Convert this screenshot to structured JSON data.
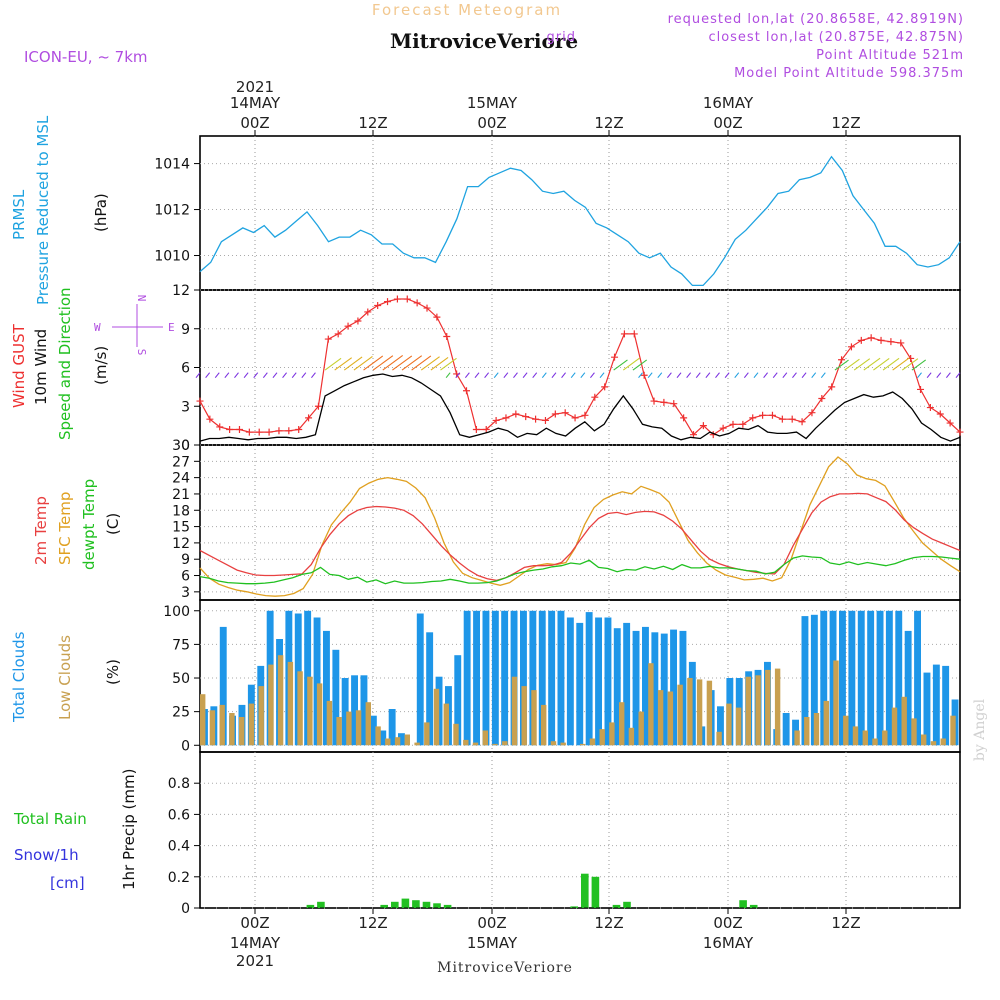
{
  "header": {
    "subtitle": "Forecast Meteogram",
    "title": "MitroviceVeriore",
    "model": "ICON-EU, ~ 7km",
    "requested": "requested lon,lat (20.8658E, 42.8919N)",
    "closest": "closest lon,lat (20.875E, 42.875N)",
    "closest_prefix": "grid",
    "point_alt": "Point Altitude 521m",
    "model_alt": "Model Point Altitude 598.375m"
  },
  "footer": {
    "station": "MitroviceVeriore",
    "watermark": "by Angel"
  },
  "time_axis": {
    "top_labels": [
      "00Z",
      "12Z",
      "00Z",
      "12Z",
      "00Z",
      "12Z"
    ],
    "top_dates": [
      "14MAY",
      "15MAY",
      "16MAY"
    ],
    "year": "2021",
    "bottom_labels": [
      "00Z",
      "12Z",
      "00Z",
      "12Z",
      "00Z",
      "12Z"
    ],
    "bottom_dates": [
      "14MAY",
      "15MAY",
      "16MAY"
    ]
  },
  "panel_labels": {
    "pressure": [
      "PRMSL",
      "Pressure Reduced to MSL",
      "(hPa)"
    ],
    "wind": [
      "Wind GUST",
      "10m Wind",
      "Speed and Direction",
      "(m/s)"
    ],
    "compass": {
      "n": "N",
      "s": "S",
      "w": "W",
      "e": "E"
    },
    "temp": [
      "2m Temp",
      "SFC Temp",
      "dewpt Temp",
      "(C)"
    ],
    "clouds": [
      "Total Clouds",
      "Low Clouds",
      "(%)"
    ],
    "precip": [
      "Total  Rain",
      "Snow/1h",
      "[cm]",
      "1hr Precip (mm)"
    ]
  },
  "colors": {
    "pressure": "#1fa3e0",
    "gust": "#ee3030",
    "wind": "#000000",
    "t2m": "#e84040",
    "sfc": "#e0a020",
    "dew": "#20c020",
    "total_clouds": "#1e96e8",
    "low_clouds": "#c8a050",
    "rain": "#22c022",
    "label_purple": "#b04de0",
    "label_blue": "#3333dd"
  },
  "chart_data": [
    {
      "type": "line",
      "name": "pressure",
      "ylabel": "(hPa)",
      "ylim": [
        1008.5,
        1015.2
      ],
      "yticks": [
        1010,
        1012,
        1014
      ],
      "x_hours": [
        0,
        1,
        2,
        3,
        4,
        5,
        6,
        7,
        8,
        9,
        10,
        11,
        12,
        13,
        14,
        15,
        16,
        17,
        18,
        19,
        20,
        21,
        22,
        23,
        24,
        25,
        26,
        27,
        28,
        29,
        30,
        31,
        32,
        33,
        34,
        35,
        36,
        37,
        38,
        39,
        40,
        41,
        42,
        43,
        44,
        45,
        46,
        47,
        48,
        49,
        50,
        51,
        52,
        53,
        54,
        55,
        56,
        57,
        58,
        59,
        60,
        61,
        62,
        63,
        64,
        65,
        66,
        67,
        68,
        69,
        70,
        71
      ],
      "series": [
        {
          "values": [
            1009.3,
            1009.7,
            1010.6,
            1010.9,
            1011.2,
            1011.0,
            1011.3,
            1010.8,
            1011.1,
            1011.5,
            1011.9,
            1011.3,
            1010.6,
            1010.8,
            1010.8,
            1011.1,
            1010.9,
            1010.5,
            1010.5,
            1010.1,
            1009.9,
            1009.9,
            1009.7,
            1010.6,
            1011.6,
            1013.0,
            1013.0,
            1013.4,
            1013.6,
            1013.8,
            1013.7,
            1013.3,
            1012.8,
            1012.7,
            1012.8,
            1012.4,
            1012.1,
            1011.4,
            1011.2,
            1010.9,
            1010.6,
            1010.1,
            1009.9,
            1010.1,
            1009.5,
            1009.2,
            1008.7,
            1008.7,
            1009.2,
            1009.9,
            1010.7,
            1011.1,
            1011.6,
            1012.1,
            1012.7,
            1012.8,
            1013.3,
            1013.4,
            1013.6,
            1014.3,
            1013.7,
            1012.6,
            1012.0,
            1011.4,
            1010.4,
            1010.4,
            1010.1,
            1009.6,
            1009.5,
            1009.6,
            1009.9,
            1010.6
          ]
        }
      ]
    },
    {
      "type": "line",
      "name": "wind",
      "ylabel": "(m/s)",
      "ylim": [
        0,
        12
      ],
      "yticks": [
        0,
        3,
        6,
        9,
        12
      ],
      "series": [
        {
          "name": "Wind GUST",
          "values": [
            3.4,
            2.0,
            1.4,
            1.2,
            1.2,
            1.0,
            1.0,
            1.0,
            1.1,
            1.1,
            1.2,
            2.1,
            3.0,
            8.2,
            8.6,
            9.2,
            9.6,
            10.3,
            10.8,
            11.1,
            11.3,
            11.3,
            11.0,
            10.6,
            9.9,
            8.4,
            5.5,
            4.2,
            1.2,
            1.2,
            1.9,
            2.1,
            2.4,
            2.2,
            2.0,
            1.9,
            2.4,
            2.5,
            2.1,
            2.3,
            3.7,
            4.5,
            6.8,
            8.6,
            8.6,
            5.4,
            3.4,
            3.3,
            3.2,
            2.1,
            0.8,
            1.5,
            0.8,
            1.3,
            1.6,
            1.6,
            2.1,
            2.3,
            2.3,
            2.0,
            2.0,
            1.8,
            2.5,
            3.6,
            4.5,
            6.6,
            7.6,
            8.1,
            8.3,
            8.1,
            8.0,
            7.9,
            6.7,
            4.3,
            2.9,
            2.4,
            1.7,
            1.0
          ]
        },
        {
          "name": "10m Wind",
          "values": [
            0.3,
            0.5,
            0.5,
            0.6,
            0.5,
            0.4,
            0.5,
            0.5,
            0.6,
            0.6,
            0.5,
            0.6,
            0.8,
            3.8,
            4.2,
            4.6,
            4.9,
            5.2,
            5.4,
            5.5,
            5.3,
            5.4,
            5.2,
            4.8,
            4.3,
            3.8,
            2.5,
            0.8,
            0.6,
            0.8,
            1.0,
            1.3,
            1.1,
            0.6,
            0.9,
            0.8,
            1.3,
            0.9,
            0.7,
            1.3,
            1.8,
            1.1,
            1.6,
            2.8,
            3.8,
            2.8,
            1.6,
            1.4,
            1.3,
            0.7,
            0.4,
            0.6,
            0.5,
            1.0,
            0.7,
            0.9,
            1.3,
            1.2,
            1.5,
            1.0,
            0.9,
            0.9,
            1.0,
            0.5,
            1.3,
            2.0,
            2.7,
            3.3,
            3.6,
            3.9,
            3.7,
            3.8,
            4.1,
            3.6,
            2.8,
            1.7,
            1.2,
            0.6,
            0.3,
            0.6
          ]
        }
      ]
    },
    {
      "type": "line",
      "name": "temperature",
      "ylabel": "(C)",
      "ylim": [
        1.5,
        30
      ],
      "yticks": [
        3,
        6,
        9,
        12,
        15,
        18,
        21,
        24,
        27,
        30
      ],
      "series": [
        {
          "name": "2m Temp",
          "values": [
            10.6,
            9.7,
            8.8,
            7.9,
            7.0,
            6.5,
            6.1,
            6.0,
            6.0,
            6.1,
            6.2,
            6.3,
            8.0,
            11.0,
            13.5,
            15.5,
            17.0,
            18.0,
            18.5,
            18.7,
            18.6,
            18.4,
            18.0,
            17.0,
            15.5,
            13.5,
            11.5,
            9.8,
            8.3,
            7.0,
            6.0,
            5.4,
            5.1,
            5.6,
            6.5,
            7.5,
            7.8,
            7.8,
            7.9,
            8.4,
            10.1,
            12.5,
            14.8,
            16.5,
            17.4,
            17.6,
            17.2,
            17.6,
            17.8,
            17.7,
            17.1,
            16.0,
            14.5,
            12.5,
            10.5,
            9.0,
            8.2,
            7.6,
            7.2,
            6.9,
            6.6,
            6.4,
            6.3,
            8.0,
            11.5,
            14.5,
            17.5,
            19.5,
            20.5,
            21.0,
            21.0,
            21.1,
            21.0,
            20.3,
            19.6,
            18.1,
            16.2,
            14.8,
            13.7,
            12.7,
            12.0,
            11.3,
            10.6
          ]
        },
        {
          "name": "SFC Temp",
          "values": [
            7.4,
            5.5,
            4.4,
            3.8,
            3.3,
            3.0,
            2.6,
            2.3,
            2.2,
            2.3,
            2.7,
            3.6,
            6.2,
            11.6,
            15.3,
            17.5,
            19.5,
            22.0,
            23.0,
            23.7,
            24.0,
            23.7,
            23.3,
            22.1,
            20.3,
            16.6,
            12.0,
            8.5,
            6.4,
            5.6,
            5.1,
            4.6,
            4.2,
            4.7,
            5.9,
            7.1,
            7.9,
            8.2,
            8.0,
            8.4,
            11.1,
            15.4,
            18.5,
            20.0,
            20.8,
            21.4,
            21.0,
            22.4,
            21.8,
            21.1,
            19.5,
            16.0,
            12.5,
            10.2,
            8.3,
            7.0,
            6.1,
            5.7,
            5.2,
            5.3,
            5.5,
            5.0,
            5.6,
            9.0,
            14.0,
            19.0,
            22.5,
            26.0,
            27.8,
            26.5,
            24.5,
            23.8,
            23.5,
            22.5,
            19.6,
            16.6,
            14.2,
            12.0,
            10.5,
            9.0,
            7.8,
            6.7
          ]
        },
        {
          "name": "dewpt Temp",
          "values": [
            5.8,
            5.5,
            5.0,
            4.7,
            4.6,
            4.5,
            4.5,
            4.6,
            4.8,
            5.2,
            5.6,
            6.2,
            6.5,
            7.5,
            6.2,
            6.0,
            5.3,
            5.7,
            4.8,
            5.2,
            4.5,
            5.0,
            4.6,
            4.6,
            4.7,
            4.9,
            5.0,
            5.3,
            5.0,
            4.6,
            4.6,
            4.7,
            5.0,
            5.6,
            6.3,
            6.7,
            7.0,
            7.2,
            7.6,
            7.8,
            8.3,
            8.1,
            8.8,
            7.5,
            7.3,
            6.7,
            7.1,
            7.0,
            7.6,
            7.2,
            7.7,
            7.1,
            8.0,
            7.4,
            7.4,
            7.7,
            7.4,
            7.4,
            7.2,
            6.9,
            6.8,
            6.3,
            6.6,
            8.0,
            9.2,
            9.6,
            9.4,
            9.3,
            8.3,
            8.0,
            8.5,
            8.0,
            8.4,
            8.1,
            7.8,
            8.2,
            8.8,
            9.3,
            9.5,
            9.5,
            9.4,
            9.2,
            9.0
          ]
        }
      ]
    },
    {
      "type": "bar",
      "name": "clouds",
      "ylabel": "(%)",
      "ylim": [
        -5,
        108
      ],
      "yticks": [
        0,
        25,
        50,
        75,
        100
      ],
      "series": [
        {
          "name": "Total Clouds",
          "values": [
            27,
            29,
            88,
            22,
            30,
            45,
            59,
            100,
            79,
            100,
            98,
            100,
            95,
            85,
            71,
            50,
            52,
            52,
            22,
            11,
            27,
            9,
            0,
            98,
            84,
            51,
            44,
            67,
            100,
            100,
            100,
            100,
            100,
            100,
            100,
            100,
            100,
            100,
            100,
            95,
            91,
            99,
            95,
            95,
            87,
            91,
            85,
            88,
            84,
            83,
            86,
            85,
            62,
            14,
            41,
            29,
            50,
            50,
            55,
            56,
            62,
            12,
            24,
            19,
            96,
            97,
            100,
            100,
            100,
            100,
            100,
            100,
            100,
            100,
            100,
            85,
            100,
            54,
            60,
            59,
            34
          ]
        },
        {
          "name": "Low Clouds",
          "values": [
            38,
            26,
            30,
            24,
            21,
            31,
            44,
            60,
            67,
            62,
            55,
            51,
            46,
            33,
            21,
            25,
            26,
            32,
            14,
            5,
            6,
            8,
            2,
            17,
            42,
            31,
            16,
            4,
            2,
            11,
            1,
            3,
            51,
            44,
            41,
            30,
            3,
            2,
            0,
            1,
            5,
            12,
            17,
            32,
            13,
            25,
            61,
            41,
            40,
            45,
            50,
            49,
            48,
            10,
            31,
            28,
            51,
            52,
            56,
            57,
            0,
            11,
            21,
            24,
            33,
            63,
            22,
            14,
            11,
            5,
            11,
            28,
            36,
            20,
            8,
            3,
            5,
            22
          ]
        }
      ]
    },
    {
      "type": "bar",
      "name": "precip",
      "ylabel": "1hr Precip (mm)",
      "ylim": [
        0,
        1.0
      ],
      "yticks": [
        0,
        0.2,
        0.4,
        0.6,
        0.8
      ],
      "series": [
        {
          "name": "Total  Rain",
          "values": [
            0,
            0,
            0,
            0,
            0,
            0,
            0,
            0,
            0,
            0,
            0.02,
            0.04,
            0,
            0,
            0,
            0,
            0,
            0.02,
            0.04,
            0.06,
            0.05,
            0.04,
            0.03,
            0.02,
            0,
            0,
            0,
            0,
            0,
            0,
            0,
            0,
            0,
            0,
            0,
            0.01,
            0.22,
            0.2,
            0,
            0.02,
            0.04,
            0,
            0,
            0,
            0,
            0,
            0,
            0,
            0,
            0,
            0,
            0.05,
            0.02,
            0,
            0,
            0,
            0,
            0,
            0,
            0,
            0,
            0,
            0,
            0,
            0,
            0,
            0,
            0,
            0,
            0,
            0,
            0
          ]
        }
      ]
    }
  ]
}
